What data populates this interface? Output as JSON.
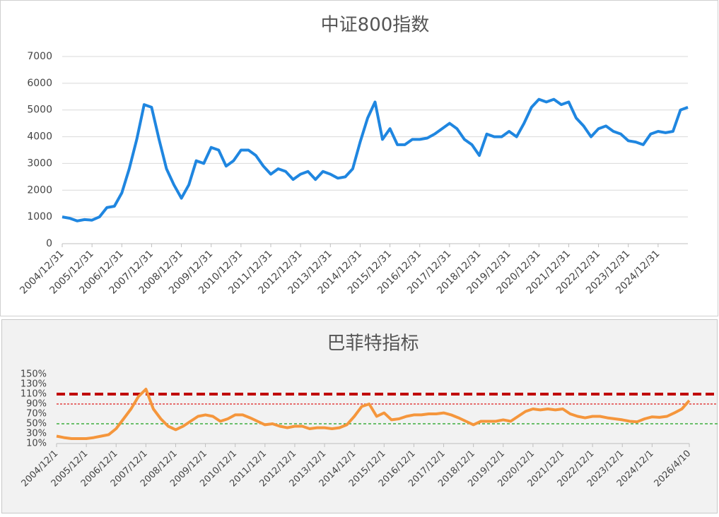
{
  "chart_data": [
    {
      "type": "line",
      "title": "中证800指数",
      "grid": true,
      "line_width": 4,
      "ylim": [
        0,
        7000
      ],
      "yticks": [
        0,
        1000,
        2000,
        3000,
        4000,
        5000,
        6000,
        7000
      ],
      "categories": [
        "2004/12/31",
        null,
        null,
        null,
        "2005/12/31",
        null,
        null,
        null,
        "2006/12/31",
        null,
        null,
        null,
        "2007/12/31",
        null,
        null,
        null,
        "2008/12/31",
        null,
        null,
        null,
        "2009/12/31",
        null,
        null,
        null,
        "2010/12/31",
        null,
        null,
        null,
        "2011/12/31",
        null,
        null,
        null,
        "2012/12/31",
        null,
        null,
        null,
        "2013/12/31",
        null,
        null,
        null,
        "2014/12/31",
        null,
        null,
        null,
        "2015/12/31",
        null,
        null,
        null,
        "2016/12/31",
        null,
        null,
        null,
        "2017/12/31",
        null,
        null,
        null,
        "2018/12/31",
        null,
        null,
        null,
        "2019/12/31",
        null,
        null,
        null,
        "2020/12/31",
        null,
        null,
        null,
        "2021/12/31",
        null,
        null,
        null,
        "2022/12/31",
        null,
        null,
        null,
        "2023/12/31",
        null,
        null,
        null,
        "2024/12/31",
        null,
        null,
        null,
        null
      ],
      "series": [
        {
          "color": "#1f86e0",
          "values": [
            1000,
            950,
            850,
            900,
            880,
            1000,
            1350,
            1400,
            1900,
            2800,
            3900,
            5200,
            5100,
            3900,
            2800,
            2200,
            1700,
            2200,
            3100,
            3000,
            3600,
            3500,
            2900,
            3100,
            3500,
            3500,
            3300,
            2900,
            2600,
            2800,
            2700,
            2400,
            2600,
            2700,
            2400,
            2700,
            2600,
            2450,
            2500,
            2800,
            3800,
            4700,
            5300,
            3900,
            4300,
            3700,
            3700,
            3900,
            3900,
            3950,
            4100,
            4300,
            4500,
            4300,
            3900,
            3700,
            3300,
            4100,
            4000,
            4000,
            4200,
            4000,
            4500,
            5100,
            5400,
            5300,
            5400,
            5200,
            5300,
            4700,
            4400,
            4000,
            4300,
            4400,
            4200,
            4100,
            3850,
            3800,
            3700,
            4100,
            4200,
            4150,
            4200,
            5000,
            5100
          ]
        }
      ]
    },
    {
      "type": "line",
      "title": "巴菲特指标",
      "grid": false,
      "line_width": 4,
      "ylim": [
        10,
        150
      ],
      "yticks": [
        {
          "value": 10,
          "label": "10%"
        },
        {
          "value": 30,
          "label": "30%"
        },
        {
          "value": 50,
          "label": "50%"
        },
        {
          "value": 70,
          "label": "70%"
        },
        {
          "value": 90,
          "label": "90%"
        },
        {
          "value": 110,
          "label": "110%"
        },
        {
          "value": 130,
          "label": "130%"
        },
        {
          "value": 150,
          "label": "150%"
        }
      ],
      "reference_lines": [
        {
          "value": 110,
          "color": "#c00000",
          "width": 4,
          "dash": "12 6"
        },
        {
          "value": 90,
          "color": "#e02020",
          "width": 1.2,
          "dash": "3 2"
        },
        {
          "value": 50,
          "color": "#1aa01a",
          "width": 1.2,
          "dash": "4 3"
        }
      ],
      "categories": [
        "2004/12/1",
        null,
        null,
        null,
        "2005/12/1",
        null,
        null,
        null,
        "2006/12/1",
        null,
        null,
        null,
        "2007/12/1",
        null,
        null,
        null,
        "2008/12/1",
        null,
        null,
        null,
        "2009/12/1",
        null,
        null,
        null,
        "2010/12/1",
        null,
        null,
        null,
        "2011/12/1",
        null,
        null,
        null,
        "2012/12/1",
        null,
        null,
        null,
        "2013/12/1",
        null,
        null,
        null,
        "2014/12/1",
        null,
        null,
        null,
        "2015/12/1",
        null,
        null,
        null,
        "2016/12/1",
        null,
        null,
        null,
        "2017/12/1",
        null,
        null,
        null,
        "2018/12/1",
        null,
        null,
        null,
        "2019/12/1",
        null,
        null,
        null,
        "2020/12/1",
        null,
        null,
        null,
        "2021/12/1",
        null,
        null,
        null,
        "2022/12/1",
        null,
        null,
        null,
        "2023/12/1",
        null,
        null,
        null,
        "2024/12/1",
        null,
        null,
        null,
        null,
        "2026/4/10"
      ],
      "series": [
        {
          "color": "#f5963c",
          "values": [
            25,
            22,
            20,
            20,
            20,
            22,
            25,
            28,
            40,
            60,
            80,
            105,
            120,
            80,
            60,
            45,
            38,
            45,
            55,
            65,
            68,
            65,
            55,
            60,
            68,
            68,
            62,
            55,
            48,
            50,
            45,
            42,
            45,
            45,
            40,
            42,
            42,
            40,
            42,
            48,
            65,
            85,
            90,
            65,
            72,
            58,
            60,
            65,
            68,
            68,
            70,
            70,
            72,
            68,
            62,
            55,
            48,
            55,
            55,
            55,
            58,
            55,
            65,
            75,
            80,
            78,
            80,
            78,
            80,
            70,
            65,
            62,
            65,
            65,
            62,
            60,
            58,
            55,
            54,
            60,
            64,
            63,
            65,
            72,
            80,
            97
          ]
        }
      ]
    }
  ]
}
